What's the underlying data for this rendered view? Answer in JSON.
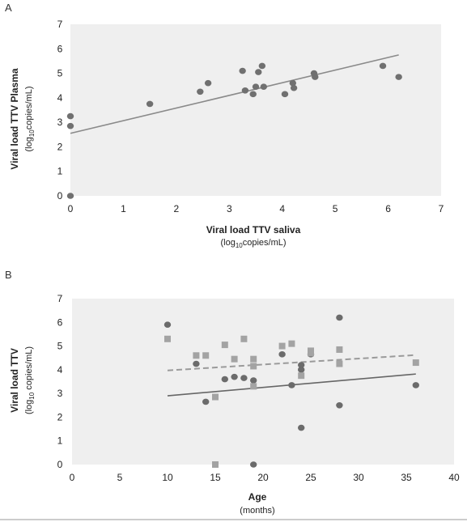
{
  "charts": [
    {
      "panel": "A",
      "ylabel": "Viral load TTV Plasma",
      "yunit": [
        "(log",
        "10",
        "copies/mL)"
      ],
      "xlabel": "Viral load TTV saliva",
      "xunit": [
        "(log",
        "10",
        "copies/mL)"
      ]
    },
    {
      "panel": "B",
      "ylabel": "Viral load TTV",
      "yunit": [
        "(log",
        "10",
        " copies/mL)"
      ],
      "xlabel": "Age",
      "xunit": [
        "(months)"
      ]
    }
  ],
  "chart_data": [
    {
      "type": "scatter",
      "title": "",
      "xlabel": "Viral load TTV saliva (log10 copies/mL)",
      "ylabel": "Viral load TTV Plasma (log10 copies/mL)",
      "xlim": [
        0,
        7
      ],
      "ylim": [
        0,
        7
      ],
      "x_ticks": [
        0,
        1,
        2,
        3,
        4,
        5,
        6,
        7
      ],
      "y_ticks": [
        0,
        1,
        2,
        3,
        4,
        5,
        6,
        7
      ],
      "grid": false,
      "colors": {
        "plot_bg": "#efefef",
        "marker": "#707070",
        "trend": "#8a8a8a"
      },
      "series": [
        {
          "marker": "circle",
          "points": [
            [
              0,
              0
            ],
            [
              0,
              2.85
            ],
            [
              0,
              3.25
            ],
            [
              1.5,
              3.75
            ],
            [
              2.45,
              4.25
            ],
            [
              2.6,
              4.6
            ],
            [
              3.25,
              5.1
            ],
            [
              3.3,
              4.3
            ],
            [
              3.45,
              4.15
            ],
            [
              3.5,
              4.45
            ],
            [
              3.55,
              5.05
            ],
            [
              3.62,
              5.3
            ],
            [
              3.65,
              4.45
            ],
            [
              4.05,
              4.15
            ],
            [
              4.2,
              4.6
            ],
            [
              4.22,
              4.4
            ],
            [
              4.6,
              5.0
            ],
            [
              4.62,
              4.85
            ],
            [
              5.9,
              5.3
            ],
            [
              6.2,
              4.85
            ]
          ]
        }
      ],
      "trendlines": [
        {
          "style": "solid",
          "from": [
            0,
            2.55
          ],
          "to": [
            6.2,
            5.75
          ]
        }
      ]
    },
    {
      "type": "scatter",
      "title": "",
      "xlabel": "Age (months)",
      "ylabel": "Viral load TTV (log10 copies/mL)",
      "xlim": [
        0,
        40
      ],
      "ylim": [
        0,
        7
      ],
      "x_ticks": [
        0,
        5,
        10,
        15,
        20,
        25,
        30,
        35,
        40
      ],
      "y_ticks": [
        0,
        1,
        2,
        3,
        4,
        5,
        6,
        7
      ],
      "grid": false,
      "colors": {
        "plot_bg": "#efefef",
        "circle": "#6b6b6b",
        "square": "#a3a3a3",
        "trend_solid": "#666666",
        "trend_dashed": "#9a9a9a"
      },
      "series": [
        {
          "marker": "circle",
          "points": [
            [
              10,
              5.9
            ],
            [
              13,
              4.25
            ],
            [
              14,
              2.65
            ],
            [
              16,
              3.6
            ],
            [
              17,
              3.7
            ],
            [
              18,
              3.65
            ],
            [
              19,
              3.55
            ],
            [
              19,
              0
            ],
            [
              22,
              4.65
            ],
            [
              23,
              3.35
            ],
            [
              24,
              4.0
            ],
            [
              24,
              4.2
            ],
            [
              24,
              1.55
            ],
            [
              25,
              4.65
            ],
            [
              28,
              6.2
            ],
            [
              28,
              2.5
            ],
            [
              36,
              3.35
            ]
          ]
        },
        {
          "marker": "square",
          "points": [
            [
              10,
              5.3
            ],
            [
              13,
              4.6
            ],
            [
              14,
              4.6
            ],
            [
              15,
              0
            ],
            [
              15,
              2.85
            ],
            [
              16,
              5.05
            ],
            [
              17,
              4.45
            ],
            [
              18,
              5.3
            ],
            [
              19,
              4.45
            ],
            [
              19,
              4.15
            ],
            [
              19,
              3.3
            ],
            [
              22,
              5.0
            ],
            [
              23,
              5.1
            ],
            [
              24,
              3.75
            ],
            [
              25,
              4.8
            ],
            [
              25,
              4.7
            ],
            [
              28,
              4.85
            ],
            [
              28,
              4.25
            ],
            [
              36,
              4.3
            ]
          ]
        }
      ],
      "trendlines": [
        {
          "style": "solid",
          "from": [
            10,
            2.9
          ],
          "to": [
            36,
            3.82
          ]
        },
        {
          "style": "dashed",
          "from": [
            10,
            3.97
          ],
          "to": [
            36,
            4.62
          ]
        }
      ]
    }
  ]
}
